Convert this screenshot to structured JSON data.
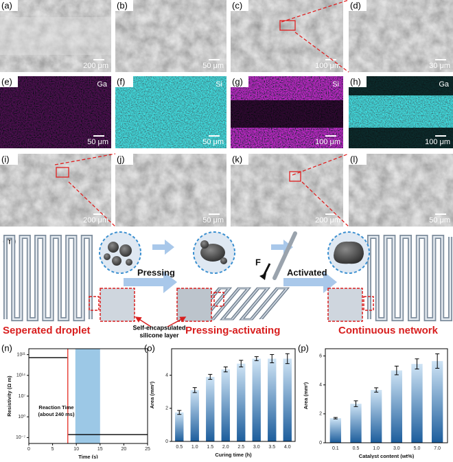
{
  "panels": [
    {
      "label": "(a)",
      "scale": "200 μm"
    },
    {
      "label": "(b)",
      "scale": "50 μm"
    },
    {
      "label": "(c)",
      "scale": "100 μm"
    },
    {
      "label": "(d)",
      "scale": "30 μm"
    },
    {
      "label": "(e)",
      "scale": "50 μm",
      "element": "Ga"
    },
    {
      "label": "(f)",
      "scale": "50 μm",
      "element": "Si"
    },
    {
      "label": "(g)",
      "scale": "100 μm",
      "element": "Si"
    },
    {
      "label": "(h)",
      "scale": "100 μm",
      "element": "Ga"
    },
    {
      "label": "(i)",
      "scale": "200 μm"
    },
    {
      "label": "(j)",
      "scale": "50 μm"
    },
    {
      "label": "(k)",
      "scale": "200 μm"
    },
    {
      "label": "(l)",
      "scale": "50 μm"
    }
  ],
  "schematic": {
    "label": "(m)",
    "steps": [
      "Pressing",
      "Activated"
    ],
    "force": "F",
    "stages": [
      "Seperated droplet",
      "Pressing-activating",
      "Continuous network"
    ],
    "layer": [
      "Self-encapsulated",
      "silicone layer"
    ]
  },
  "chart_data": [
    {
      "type": "line",
      "label": "(n)",
      "xlabel": "Time (s)",
      "ylabel": "Resistivity (Ω m)",
      "annotation": [
        "Reaction Time",
        "(about 240 ms)"
      ],
      "x": [
        0,
        8.2,
        8.2,
        25
      ],
      "series": [
        {
          "color": "#000000",
          "values": [
            1e+20,
            1e+20,
            1e-06,
            1e-06
          ]
        }
      ],
      "reaction_x": 8.2,
      "reaction_color": "#e8473f",
      "span": [
        9.8,
        15
      ],
      "span_color": "#9cc8e6",
      "log_y": true,
      "xlim": [
        0,
        25
      ],
      "xticks": [
        0,
        5,
        10,
        15,
        20,
        25
      ],
      "ylim": [
        1e-09,
        1e+23
      ],
      "yticks": [
        {
          "value": 1e-07,
          "label": "10⁻⁷"
        },
        {
          "value": 1,
          "label": "10⁰"
        },
        {
          "value": 10000000.0,
          "label": "10⁷"
        },
        {
          "value": 100000000000000.0,
          "label": "10¹⁴"
        },
        {
          "value": 1e+21,
          "label": "10²¹"
        }
      ]
    },
    {
      "type": "bar",
      "label": "(o)",
      "xlabel": "Curing time (h)",
      "ylabel": "Area (mm²)",
      "categories": [
        "0.5",
        "1.0",
        "1.5",
        "2.0",
        "2.5",
        "3.0",
        "3.5",
        "4.0"
      ],
      "values": [
        1.75,
        3.1,
        3.9,
        4.35,
        4.7,
        5.0,
        5.0,
        5.0
      ],
      "errors": [
        0.12,
        0.15,
        0.15,
        0.15,
        0.2,
        0.12,
        0.25,
        0.3
      ],
      "ylim": [
        0,
        5.6
      ],
      "yticks": [
        0,
        2,
        4
      ]
    },
    {
      "type": "bar",
      "label": "(p)",
      "xlabel": "Catalyst content (wt%)",
      "ylabel": "Area (mm²)",
      "categories": [
        "0.1",
        "0.5",
        "1.0",
        "3.0",
        "5.0",
        "7.0"
      ],
      "values": [
        1.7,
        2.7,
        3.65,
        5.0,
        5.45,
        5.65
      ],
      "errors": [
        0.05,
        0.2,
        0.15,
        0.3,
        0.35,
        0.5
      ],
      "ylim": [
        0,
        6.5
      ],
      "yticks": [
        0,
        2,
        4,
        6
      ]
    }
  ]
}
